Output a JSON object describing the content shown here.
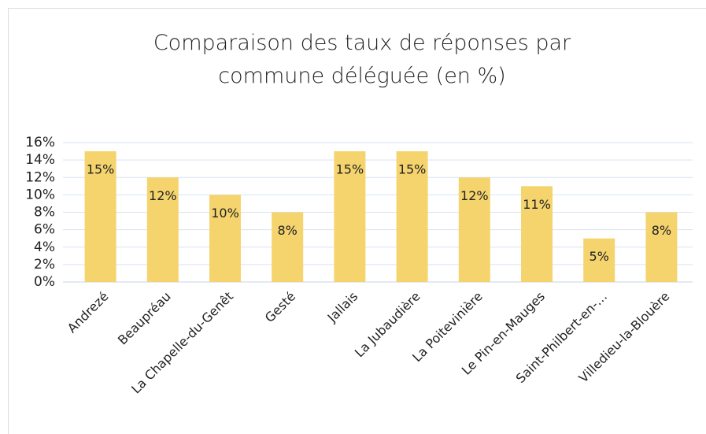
{
  "chart_data": {
    "type": "bar",
    "title": "Comparaison des taux de réponses par commune déléguée (en %)",
    "categories": [
      "Andrezé",
      "Beaupréau",
      "La Chapelle-du-Genêt",
      "Gesté",
      "Jallais",
      "La Jubaudière",
      "La Poitevinière",
      "Le Pin-en-Mauges",
      "Saint-Philbert-en-…",
      "Villedieu-la-Blouère"
    ],
    "values": [
      15,
      12,
      10,
      8,
      15,
      15,
      12,
      11,
      5,
      8
    ],
    "value_labels": [
      "15%",
      "12%",
      "10%",
      "8%",
      "15%",
      "15%",
      "12%",
      "11%",
      "5%",
      "8%"
    ],
    "color": "#f5d46e",
    "ylim": [
      0,
      16
    ],
    "yticks": [
      {
        "value": 0,
        "label": "0%"
      },
      {
        "value": 2,
        "label": "2%"
      },
      {
        "value": 4,
        "label": "4%"
      },
      {
        "value": 6,
        "label": "6%"
      },
      {
        "value": 8,
        "label": "8%"
      },
      {
        "value": 10,
        "label": "10%"
      },
      {
        "value": 12,
        "label": "12%"
      },
      {
        "value": 14,
        "label": "14%"
      },
      {
        "value": 16,
        "label": "16%"
      }
    ],
    "grid": true
  }
}
